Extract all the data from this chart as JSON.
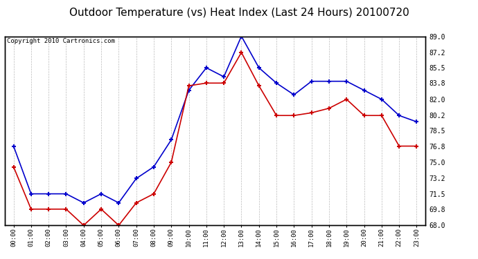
{
  "title": "Outdoor Temperature (vs) Heat Index (Last 24 Hours) 20100720",
  "copyright_text": "Copyright 2010 Cartronics.com",
  "hours": [
    "00:00",
    "01:00",
    "02:00",
    "03:00",
    "04:00",
    "05:00",
    "06:00",
    "07:00",
    "08:00",
    "09:00",
    "10:00",
    "11:00",
    "12:00",
    "13:00",
    "14:00",
    "15:00",
    "16:00",
    "17:00",
    "18:00",
    "19:00",
    "20:00",
    "21:00",
    "22:00",
    "23:00"
  ],
  "blue_data": [
    76.8,
    71.5,
    71.5,
    71.5,
    70.5,
    71.5,
    70.5,
    73.2,
    74.5,
    77.5,
    83.0,
    85.5,
    84.5,
    89.0,
    85.5,
    83.8,
    82.5,
    84.0,
    84.0,
    84.0,
    83.0,
    82.0,
    80.2,
    79.5
  ],
  "red_data": [
    74.5,
    69.8,
    69.8,
    69.8,
    68.0,
    69.8,
    68.0,
    70.5,
    71.5,
    75.0,
    83.5,
    83.8,
    83.8,
    87.2,
    83.5,
    80.2,
    80.2,
    80.5,
    81.0,
    82.0,
    80.2,
    80.2,
    76.8,
    76.8
  ],
  "ylim_min": 68.0,
  "ylim_max": 89.0,
  "yticks": [
    68.0,
    69.8,
    71.5,
    73.2,
    75.0,
    76.8,
    78.5,
    80.2,
    82.0,
    83.8,
    85.5,
    87.2,
    89.0
  ],
  "blue_color": "#0000cc",
  "red_color": "#cc0000",
  "bg_color": "#ffffff",
  "plot_bg_color": "#ffffff",
  "grid_color": "#aaaaaa",
  "title_fontsize": 11,
  "copyright_fontsize": 6.5
}
